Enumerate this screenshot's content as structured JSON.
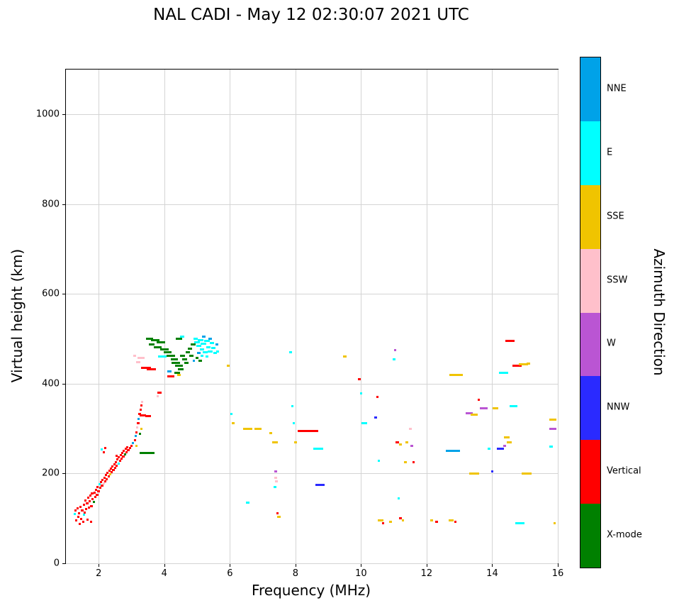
{
  "chart_data": {
    "type": "scatter",
    "title": "NAL CADI - May 12 02:30:07 2021 UTC",
    "xlabel": "Frequency (MHz)",
    "ylabel": "Virtual height (km)",
    "xlim": [
      1,
      16
    ],
    "ylim": [
      0,
      1100
    ],
    "xticks": [
      2,
      4,
      6,
      8,
      10,
      12,
      14,
      16
    ],
    "yticks": [
      0,
      200,
      400,
      600,
      800,
      1000
    ],
    "grid": true,
    "colorbar": {
      "label": "Azimuth Direction",
      "categories": [
        {
          "label": "NNE",
          "color": "#00A2E8"
        },
        {
          "label": "E",
          "color": "#00FFFF"
        },
        {
          "label": "SSE",
          "color": "#F0C400"
        },
        {
          "label": "SSW",
          "color": "#FFC0CB"
        },
        {
          "label": "W",
          "color": "#BA55D3"
        },
        {
          "label": "NNW",
          "color": "#2A2AFF"
        },
        {
          "label": "Vertical",
          "color": "#FF0000"
        },
        {
          "label": "X-mode",
          "color": "#008000"
        }
      ]
    },
    "points": [
      [
        1.28,
        110,
        "E",
        0.05
      ],
      [
        1.3,
        118,
        "Vertical",
        0.07
      ],
      [
        1.32,
        95,
        "Vertical",
        0.05
      ],
      [
        1.35,
        122,
        "Vertical",
        0.07
      ],
      [
        1.38,
        103,
        "Vertical",
        0.06
      ],
      [
        1.4,
        112,
        "Vertical",
        0.07
      ],
      [
        1.42,
        88,
        "Vertical",
        0.06
      ],
      [
        1.45,
        126,
        "Vertical",
        0.07
      ],
      [
        1.47,
        99,
        "Vertical",
        0.05
      ],
      [
        1.5,
        117,
        "Vertical",
        0.08
      ],
      [
        1.52,
        93,
        "Vertical",
        0.06
      ],
      [
        1.55,
        131,
        "Vertical",
        0.07
      ],
      [
        1.55,
        108,
        "E",
        0.05
      ],
      [
        1.58,
        113,
        "Vertical",
        0.07
      ],
      [
        1.6,
        140,
        "Vertical",
        0.07
      ],
      [
        1.62,
        121,
        "Vertical",
        0.06
      ],
      [
        1.65,
        133,
        "Vertical",
        0.07
      ],
      [
        1.66,
        97,
        "Vertical",
        0.05
      ],
      [
        1.68,
        146,
        "Vertical",
        0.06
      ],
      [
        1.7,
        124,
        "Vertical",
        0.08
      ],
      [
        1.72,
        139,
        "Vertical",
        0.06
      ],
      [
        1.75,
        151,
        "Vertical",
        0.07
      ],
      [
        1.76,
        93,
        "Vertical",
        0.06
      ],
      [
        1.78,
        128,
        "Vertical",
        0.07
      ],
      [
        1.8,
        156,
        "Vertical",
        0.07
      ],
      [
        1.82,
        143,
        "Vertical",
        0.06
      ],
      [
        1.85,
        136,
        "X-mode",
        0.07
      ],
      [
        1.87,
        158,
        "Vertical",
        0.06
      ],
      [
        1.9,
        148,
        "Vertical",
        0.08
      ],
      [
        1.92,
        163,
        "Vertical",
        0.06
      ],
      [
        1.95,
        152,
        "Vertical",
        0.07
      ],
      [
        1.97,
        170,
        "Vertical",
        0.06
      ],
      [
        2.0,
        161,
        "Vertical",
        0.08
      ],
      [
        2.02,
        176,
        "E",
        0.06
      ],
      [
        2.05,
        168,
        "Vertical",
        0.07
      ],
      [
        2.07,
        181,
        "Vertical",
        0.06
      ],
      [
        2.1,
        173,
        "Vertical",
        0.07
      ],
      [
        2.1,
        253,
        "E",
        0.05
      ],
      [
        2.12,
        186,
        "Vertical",
        0.06
      ],
      [
        2.15,
        178,
        "SSW",
        0.06
      ],
      [
        2.15,
        247,
        "Vertical",
        0.05
      ],
      [
        2.17,
        191,
        "Vertical",
        0.07
      ],
      [
        2.2,
        183,
        "Vertical",
        0.07
      ],
      [
        2.2,
        257,
        "Vertical",
        0.05
      ],
      [
        2.22,
        196,
        "Vertical",
        0.06
      ],
      [
        2.25,
        188,
        "Vertical",
        0.07
      ],
      [
        2.27,
        201,
        "Vertical",
        0.06
      ],
      [
        2.3,
        193,
        "Vertical",
        0.07
      ],
      [
        2.32,
        206,
        "Vertical",
        0.06
      ],
      [
        2.35,
        198,
        "SSE",
        0.06
      ],
      [
        2.37,
        211,
        "Vertical",
        0.06
      ],
      [
        2.4,
        203,
        "Vertical",
        0.07
      ],
      [
        2.42,
        215,
        "Vertical",
        0.06
      ],
      [
        2.45,
        208,
        "Vertical",
        0.07
      ],
      [
        2.47,
        220,
        "Vertical",
        0.06
      ],
      [
        2.5,
        213,
        "Vertical",
        0.08
      ],
      [
        2.52,
        226,
        "Vertical",
        0.06
      ],
      [
        2.55,
        218,
        "Vertical",
        0.07
      ],
      [
        2.55,
        240,
        "Vertical",
        0.05
      ],
      [
        2.57,
        231,
        "Vertical",
        0.06
      ],
      [
        2.6,
        222,
        "E",
        0.06
      ],
      [
        2.62,
        236,
        "Vertical",
        0.06
      ],
      [
        2.65,
        228,
        "Vertical",
        0.07
      ],
      [
        2.67,
        241,
        "Vertical",
        0.06
      ],
      [
        2.7,
        233,
        "Vertical",
        0.07
      ],
      [
        2.72,
        246,
        "Vertical",
        0.06
      ],
      [
        2.75,
        238,
        "Vertical",
        0.07
      ],
      [
        2.77,
        251,
        "Vertical",
        0.06
      ],
      [
        2.8,
        243,
        "X-mode",
        0.07
      ],
      [
        2.82,
        255,
        "Vertical",
        0.06
      ],
      [
        2.85,
        248,
        "Vertical",
        0.07
      ],
      [
        2.87,
        259,
        "Vertical",
        0.06
      ],
      [
        2.9,
        252,
        "Vertical",
        0.07
      ],
      [
        2.95,
        257,
        "Vertical",
        0.07
      ],
      [
        3.0,
        262,
        "Vertical",
        0.08
      ],
      [
        3.05,
        268,
        "NNE",
        0.06
      ],
      [
        3.1,
        274,
        "Vertical",
        0.07
      ],
      [
        3.12,
        283,
        "NNE",
        0.06
      ],
      [
        3.15,
        292,
        "Vertical",
        0.07
      ],
      [
        3.15,
        262,
        "SSE",
        0.06
      ],
      [
        3.18,
        302,
        "SSW",
        0.07
      ],
      [
        3.2,
        312,
        "Vertical",
        0.08
      ],
      [
        3.22,
        322,
        "NNE",
        0.06
      ],
      [
        3.25,
        332,
        "Vertical",
        0.08
      ],
      [
        3.25,
        288,
        "X-mode",
        0.06
      ],
      [
        3.28,
        342,
        "Vertical",
        0.07
      ],
      [
        3.3,
        352,
        "Vertical",
        0.07
      ],
      [
        3.32,
        360,
        "SSW",
        0.06
      ],
      [
        3.3,
        300,
        "SSE",
        0.08
      ],
      [
        3.35,
        330,
        "Vertical",
        0.2
      ],
      [
        3.5,
        328,
        "Vertical",
        0.18
      ],
      [
        3.2,
        448,
        "SSW",
        0.12
      ],
      [
        3.3,
        458,
        "SSW",
        0.22
      ],
      [
        3.1,
        462,
        "SSW",
        0.1
      ],
      [
        3.45,
        436,
        "Vertical",
        0.3
      ],
      [
        3.6,
        432,
        "Vertical",
        0.28
      ],
      [
        3.4,
        246,
        "X-mode",
        0.3
      ],
      [
        3.62,
        245,
        "X-mode",
        0.18
      ],
      [
        3.85,
        380,
        "Vertical",
        0.12
      ],
      [
        3.8,
        372,
        "SSW",
        0.08
      ],
      [
        3.55,
        500,
        "X-mode",
        0.22
      ],
      [
        3.72,
        497,
        "X-mode",
        0.26
      ],
      [
        3.9,
        493,
        "X-mode",
        0.26
      ],
      [
        3.62,
        487,
        "X-mode",
        0.18
      ],
      [
        3.8,
        481,
        "X-mode",
        0.22
      ],
      [
        4.0,
        477,
        "X-mode",
        0.26
      ],
      [
        3.95,
        460,
        "E",
        0.26
      ],
      [
        4.1,
        470,
        "X-mode",
        0.22
      ],
      [
        4.2,
        463,
        "X-mode",
        0.26
      ],
      [
        4.3,
        455,
        "X-mode",
        0.22
      ],
      [
        4.35,
        447,
        "X-mode",
        0.26
      ],
      [
        4.45,
        440,
        "X-mode",
        0.24
      ],
      [
        4.5,
        432,
        "X-mode",
        0.18
      ],
      [
        4.4,
        424,
        "X-mode",
        0.18
      ],
      [
        4.15,
        428,
        "NNE",
        0.12
      ],
      [
        4.2,
        417,
        "Vertical",
        0.2
      ],
      [
        4.45,
        420,
        "SSE",
        0.12
      ],
      [
        4.55,
        505,
        "E",
        0.14
      ],
      [
        4.45,
        500,
        "X-mode",
        0.18
      ],
      [
        4.55,
        463,
        "X-mode",
        0.16
      ],
      [
        4.62,
        455,
        "X-mode",
        0.16
      ],
      [
        4.68,
        447,
        "X-mode",
        0.14
      ],
      [
        4.72,
        470,
        "X-mode",
        0.14
      ],
      [
        4.78,
        478,
        "X-mode",
        0.14
      ],
      [
        4.82,
        462,
        "X-mode",
        0.12
      ],
      [
        4.88,
        488,
        "X-mode",
        0.14
      ],
      [
        4.9,
        452,
        "NNE",
        0.08
      ],
      [
        4.95,
        500,
        "E",
        0.14
      ],
      [
        5.0,
        492,
        "E",
        0.18
      ],
      [
        5.05,
        484,
        "E",
        0.14
      ],
      [
        5.1,
        497,
        "E",
        0.18
      ],
      [
        5.15,
        477,
        "E",
        0.14
      ],
      [
        5.2,
        489,
        "E",
        0.18
      ],
      [
        5.25,
        470,
        "E",
        0.14
      ],
      [
        5.3,
        495,
        "E",
        0.18
      ],
      [
        5.35,
        482,
        "E",
        0.14
      ],
      [
        5.4,
        472,
        "E",
        0.14
      ],
      [
        5.45,
        490,
        "E",
        0.14
      ],
      [
        5.5,
        480,
        "E",
        0.12
      ],
      [
        5.55,
        468,
        "E",
        0.1
      ],
      [
        5.3,
        460,
        "E",
        0.1
      ],
      [
        5.15,
        462,
        "E",
        0.1
      ],
      [
        5.05,
        468,
        "NNE",
        0.1
      ],
      [
        5.2,
        505,
        "NNE",
        0.1
      ],
      [
        5.4,
        500,
        "NNE",
        0.1
      ],
      [
        5.1,
        452,
        "X-mode",
        0.1
      ],
      [
        5.0,
        458,
        "X-mode",
        0.1
      ],
      [
        5.6,
        487,
        "NNE",
        0.08
      ],
      [
        5.62,
        472,
        "E",
        0.08
      ],
      [
        5.95,
        440,
        "SSE",
        0.08
      ],
      [
        6.05,
        332,
        "E",
        0.06
      ],
      [
        6.1,
        312,
        "SSE",
        0.1
      ],
      [
        6.55,
        300,
        "SSE",
        0.28
      ],
      [
        6.85,
        300,
        "SSE",
        0.22
      ],
      [
        6.55,
        135,
        "E",
        0.1
      ],
      [
        7.25,
        290,
        "SSE",
        0.08
      ],
      [
        7.38,
        270,
        "SSE",
        0.16
      ],
      [
        7.4,
        205,
        "W",
        0.08
      ],
      [
        7.4,
        190,
        "SSW",
        0.1
      ],
      [
        7.42,
        182,
        "SSW",
        0.1
      ],
      [
        7.38,
        170,
        "E",
        0.08
      ],
      [
        7.45,
        112,
        "Vertical",
        0.08
      ],
      [
        7.5,
        104,
        "SSE",
        0.1
      ],
      [
        7.85,
        470,
        "E",
        0.1
      ],
      [
        7.9,
        350,
        "E",
        0.06
      ],
      [
        7.95,
        312,
        "E",
        0.08
      ],
      [
        8.0,
        270,
        "SSE",
        0.1
      ],
      [
        8.3,
        295,
        "Vertical",
        0.45
      ],
      [
        8.6,
        294,
        "Vertical",
        0.18
      ],
      [
        8.7,
        255,
        "E",
        0.3
      ],
      [
        8.75,
        175,
        "NNW",
        0.28
      ],
      [
        9.5,
        460,
        "SSE",
        0.1
      ],
      [
        9.95,
        410,
        "Vertical",
        0.08
      ],
      [
        10.0,
        378,
        "E",
        0.06
      ],
      [
        10.1,
        312,
        "E",
        0.18
      ],
      [
        10.45,
        325,
        "NNW",
        0.08
      ],
      [
        10.5,
        370,
        "Vertical",
        0.08
      ],
      [
        10.55,
        228,
        "E",
        0.06
      ],
      [
        10.6,
        95,
        "SSE",
        0.18
      ],
      [
        10.68,
        90,
        "Vertical",
        0.06
      ],
      [
        10.9,
        93,
        "SSE",
        0.1
      ],
      [
        11.0,
        455,
        "E",
        0.08
      ],
      [
        11.05,
        475,
        "W",
        0.06
      ],
      [
        11.1,
        270,
        "Vertical",
        0.12
      ],
      [
        11.2,
        265,
        "SSE",
        0.1
      ],
      [
        11.15,
        145,
        "E",
        0.05
      ],
      [
        11.2,
        100,
        "Vertical",
        0.08
      ],
      [
        11.27,
        95,
        "SSE",
        0.06
      ],
      [
        11.35,
        225,
        "SSE",
        0.08
      ],
      [
        11.4,
        270,
        "SSE",
        0.1
      ],
      [
        11.5,
        300,
        "SSW",
        0.08
      ],
      [
        11.55,
        262,
        "W",
        0.08
      ],
      [
        11.6,
        225,
        "Vertical",
        0.06
      ],
      [
        12.15,
        95,
        "SSE",
        0.1
      ],
      [
        12.3,
        92,
        "Vertical",
        0.08
      ],
      [
        12.8,
        250,
        "NNE",
        0.45
      ],
      [
        12.75,
        95,
        "SSE",
        0.16
      ],
      [
        12.88,
        92,
        "Vertical",
        0.08
      ],
      [
        12.9,
        420,
        "SSE",
        0.4
      ],
      [
        13.3,
        335,
        "W",
        0.2
      ],
      [
        13.45,
        331,
        "SSE",
        0.22
      ],
      [
        13.45,
        200,
        "SSE",
        0.3
      ],
      [
        13.6,
        365,
        "Vertical",
        0.06
      ],
      [
        13.75,
        345,
        "W",
        0.24
      ],
      [
        14.1,
        345,
        "SSE",
        0.16
      ],
      [
        13.9,
        255,
        "E",
        0.08
      ],
      [
        14.0,
        205,
        "NNW",
        0.08
      ],
      [
        14.25,
        255,
        "NNW",
        0.22
      ],
      [
        14.38,
        262,
        "W",
        0.1
      ],
      [
        14.35,
        425,
        "E",
        0.28
      ],
      [
        14.45,
        280,
        "SSE",
        0.18
      ],
      [
        14.52,
        270,
        "SSE",
        0.14
      ],
      [
        14.55,
        495,
        "Vertical",
        0.28
      ],
      [
        14.65,
        350,
        "E",
        0.24
      ],
      [
        14.75,
        440,
        "Vertical",
        0.28
      ],
      [
        14.95,
        443,
        "SSE",
        0.28
      ],
      [
        14.85,
        90,
        "E",
        0.28
      ],
      [
        15.05,
        200,
        "SSE",
        0.3
      ],
      [
        15.1,
        445,
        "SSE",
        0.12
      ],
      [
        15.85,
        320,
        "SSE",
        0.2
      ],
      [
        15.85,
        300,
        "W",
        0.2
      ],
      [
        15.8,
        260,
        "E",
        0.1
      ],
      [
        15.9,
        90,
        "SSE",
        0.08
      ]
    ]
  }
}
